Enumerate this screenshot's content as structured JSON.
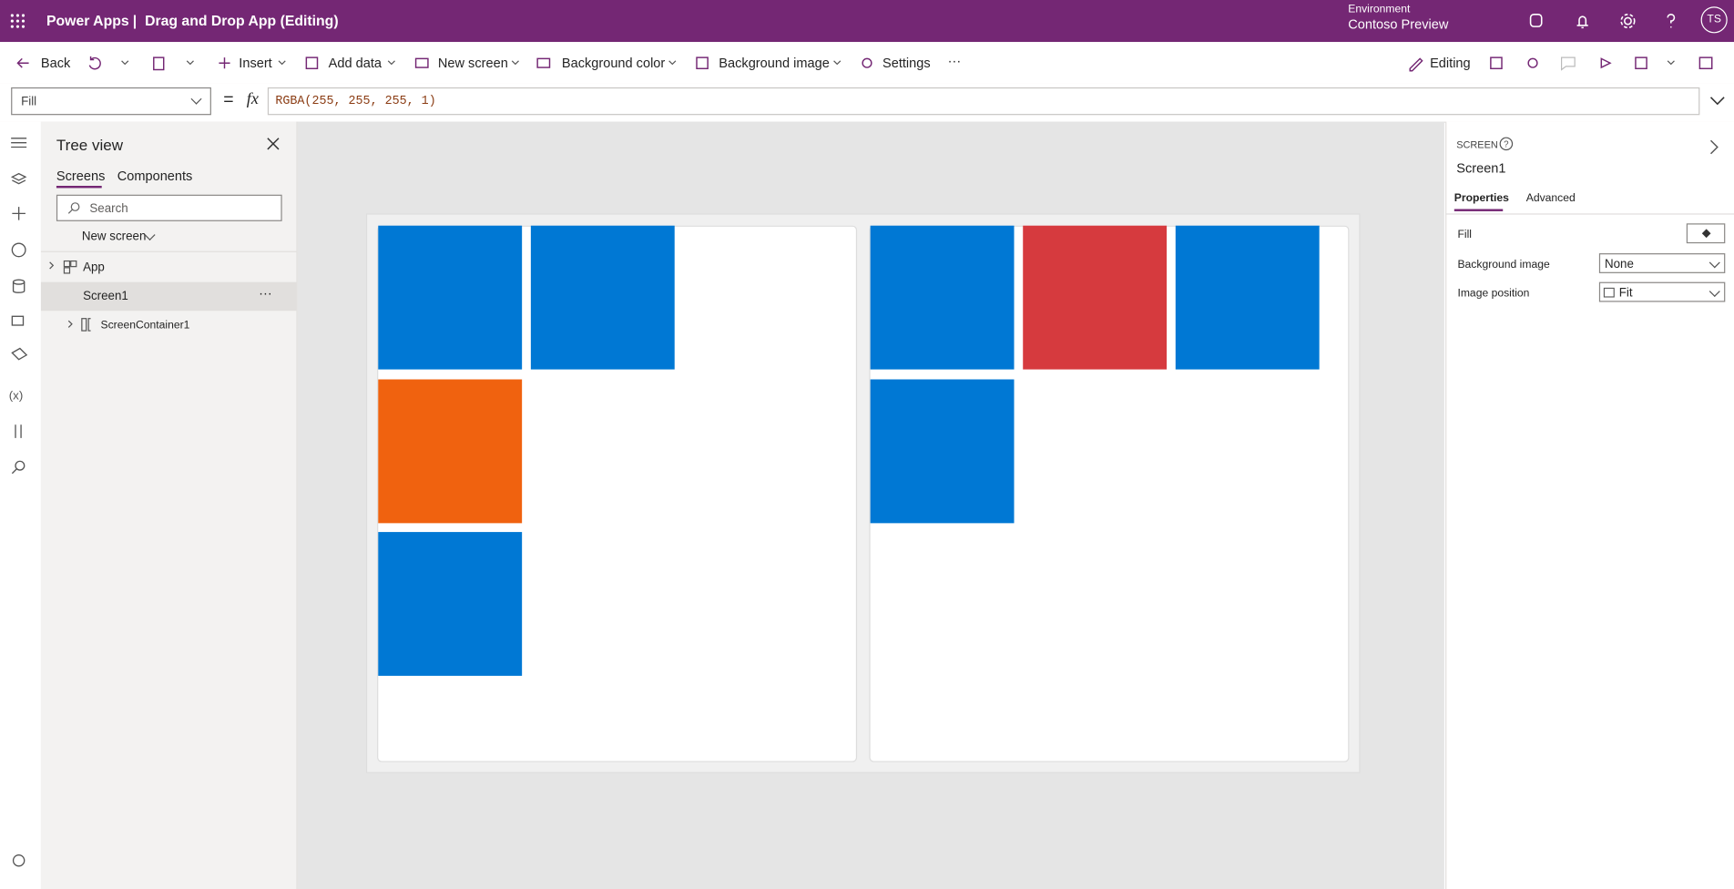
{
  "header": {
    "app_name": "Power Apps",
    "separator": "|",
    "doc_title": "Drag and Drop App (Editing)",
    "environment_label": "Environment",
    "environment_name": "Contoso Preview",
    "user_initials": "TS"
  },
  "toolbar": {
    "back": "Back",
    "insert": "Insert",
    "add_data": "Add data",
    "new_screen": "New screen",
    "background_color": "Background color",
    "background_image": "Background image",
    "settings": "Settings",
    "more": "···",
    "editing": "Editing"
  },
  "formula_bar": {
    "property": "Fill",
    "equals": "=",
    "fx": "fx",
    "formula": "RGBA(255, 255, 255, 1)"
  },
  "tree_view": {
    "title": "Tree view",
    "tabs": [
      "Screens",
      "Components"
    ],
    "search_placeholder": "Search",
    "new_screen": "New screen",
    "items": [
      "App",
      "Screen1",
      "ScreenContainer1"
    ],
    "item_more": "···"
  },
  "properties_pane": {
    "kind": "SCREEN",
    "name": "Screen1",
    "tabs": [
      "Properties",
      "Advanced"
    ],
    "rows": [
      {
        "label": "Fill"
      },
      {
        "label": "Background image",
        "value": "None"
      },
      {
        "label": "Image position",
        "value": "Fit"
      }
    ]
  }
}
